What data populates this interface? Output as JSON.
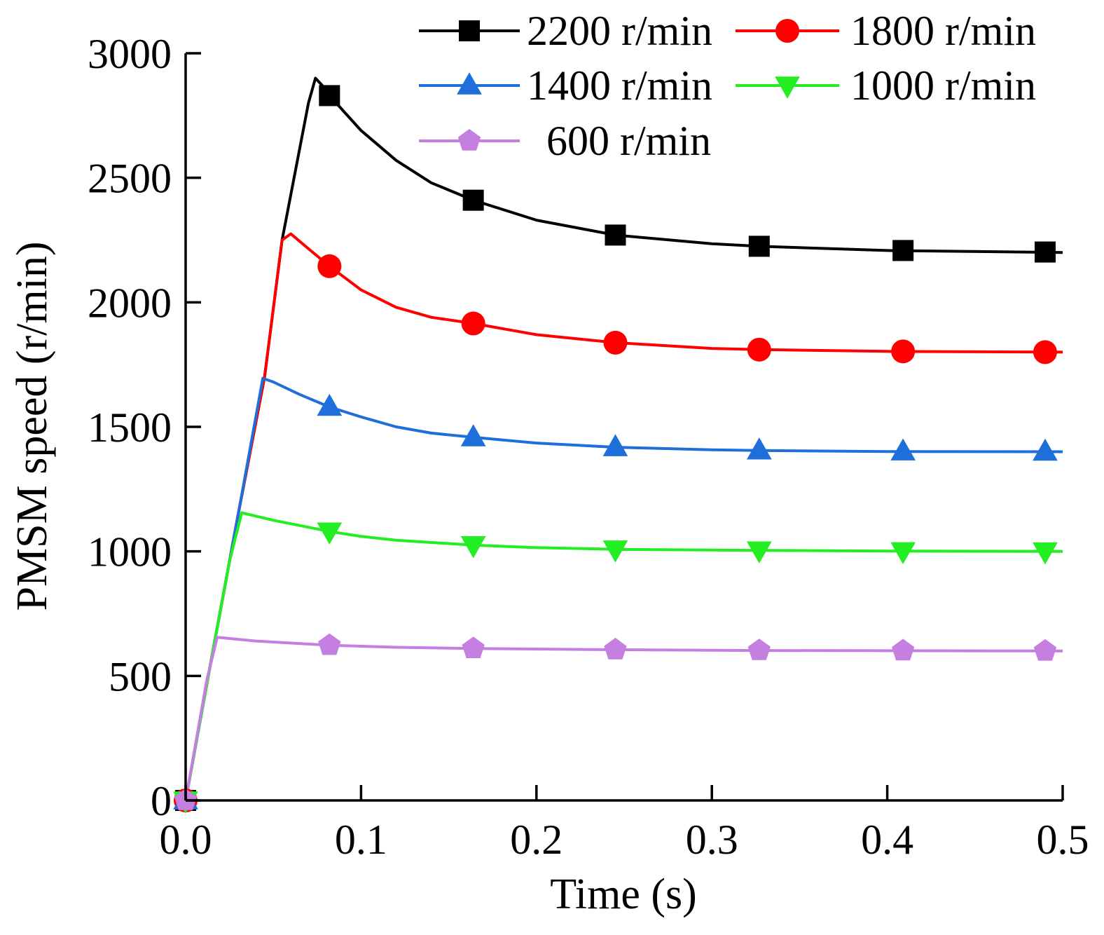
{
  "chart_data": {
    "type": "line",
    "title": "",
    "xlabel": "Time (s)",
    "ylabel": "PMSM speed (r/min)",
    "xlim": [
      0.0,
      0.5
    ],
    "ylim": [
      0,
      3000
    ],
    "xticks": [
      0.0,
      0.1,
      0.2,
      0.3,
      0.4,
      0.5
    ],
    "xtick_labels": [
      "0.0",
      "0.1",
      "0.2",
      "0.3",
      "0.4",
      "0.5"
    ],
    "yticks": [
      0,
      500,
      1000,
      1500,
      2000,
      2500,
      3000
    ],
    "ytick_labels": [
      "0",
      "500",
      "1000",
      "1500",
      "2000",
      "2500",
      "3000"
    ],
    "grid": false,
    "legend_position": "top",
    "marker_x": [
      0.0,
      0.082,
      0.164,
      0.245,
      0.327,
      0.409,
      0.49
    ],
    "series": [
      {
        "name": "2200 r/min",
        "color": "#000000",
        "marker": "square",
        "line": [
          [
            0,
            0
          ],
          [
            0.015,
            580
          ],
          [
            0.03,
            1150
          ],
          [
            0.045,
            1700
          ],
          [
            0.055,
            2250
          ],
          [
            0.07,
            2800
          ],
          [
            0.074,
            2900
          ],
          [
            0.078,
            2870
          ],
          [
            0.082,
            2830
          ],
          [
            0.1,
            2690
          ],
          [
            0.12,
            2570
          ],
          [
            0.14,
            2480
          ],
          [
            0.164,
            2410
          ],
          [
            0.2,
            2330
          ],
          [
            0.245,
            2270
          ],
          [
            0.3,
            2235
          ],
          [
            0.327,
            2225
          ],
          [
            0.4,
            2208
          ],
          [
            0.5,
            2200
          ]
        ],
        "markers": [
          0,
          2830,
          2410,
          2270,
          2225,
          2208,
          2202
        ]
      },
      {
        "name": "1800 r/min",
        "color": "#ff0000",
        "marker": "circle",
        "line": [
          [
            0,
            0
          ],
          [
            0.015,
            580
          ],
          [
            0.03,
            1150
          ],
          [
            0.045,
            1700
          ],
          [
            0.055,
            2250
          ],
          [
            0.06,
            2275
          ],
          [
            0.07,
            2215
          ],
          [
            0.082,
            2145
          ],
          [
            0.1,
            2050
          ],
          [
            0.12,
            1980
          ],
          [
            0.14,
            1940
          ],
          [
            0.164,
            1915
          ],
          [
            0.2,
            1870
          ],
          [
            0.245,
            1838
          ],
          [
            0.3,
            1815
          ],
          [
            0.327,
            1810
          ],
          [
            0.4,
            1803
          ],
          [
            0.5,
            1800
          ]
        ],
        "markers": [
          0,
          2145,
          1915,
          1838,
          1810,
          1803,
          1800
        ]
      },
      {
        "name": "1400 r/min",
        "color": "#1e6fd9",
        "marker": "triangle-up",
        "line": [
          [
            0,
            0
          ],
          [
            0.015,
            580
          ],
          [
            0.03,
            1150
          ],
          [
            0.044,
            1695
          ],
          [
            0.05,
            1680
          ],
          [
            0.065,
            1630
          ],
          [
            0.082,
            1580
          ],
          [
            0.1,
            1540
          ],
          [
            0.12,
            1500
          ],
          [
            0.14,
            1475
          ],
          [
            0.164,
            1458
          ],
          [
            0.2,
            1435
          ],
          [
            0.245,
            1418
          ],
          [
            0.3,
            1408
          ],
          [
            0.327,
            1405
          ],
          [
            0.4,
            1401
          ],
          [
            0.5,
            1400
          ]
        ],
        "markers": [
          0,
          1580,
          1458,
          1418,
          1405,
          1401,
          1400
        ]
      },
      {
        "name": "1000 r/min",
        "color": "#22ee22",
        "marker": "triangle-down",
        "line": [
          [
            0,
            0
          ],
          [
            0.015,
            580
          ],
          [
            0.025,
            960
          ],
          [
            0.032,
            1155
          ],
          [
            0.05,
            1125
          ],
          [
            0.082,
            1080
          ],
          [
            0.1,
            1060
          ],
          [
            0.12,
            1045
          ],
          [
            0.164,
            1025
          ],
          [
            0.2,
            1015
          ],
          [
            0.245,
            1008
          ],
          [
            0.327,
            1004
          ],
          [
            0.4,
            1001
          ],
          [
            0.5,
            1000
          ]
        ],
        "markers": [
          0,
          1080,
          1025,
          1008,
          1004,
          1001,
          1000
        ]
      },
      {
        "name": "600 r/min",
        "color": "#c47fe0",
        "marker": "pentagon",
        "line": [
          [
            0,
            0
          ],
          [
            0.012,
            480
          ],
          [
            0.018,
            655
          ],
          [
            0.04,
            640
          ],
          [
            0.082,
            623
          ],
          [
            0.12,
            615
          ],
          [
            0.164,
            610
          ],
          [
            0.245,
            605
          ],
          [
            0.327,
            602
          ],
          [
            0.409,
            601
          ],
          [
            0.5,
            600
          ]
        ],
        "markers": [
          0,
          623,
          610,
          605,
          602,
          601,
          600
        ]
      }
    ]
  }
}
